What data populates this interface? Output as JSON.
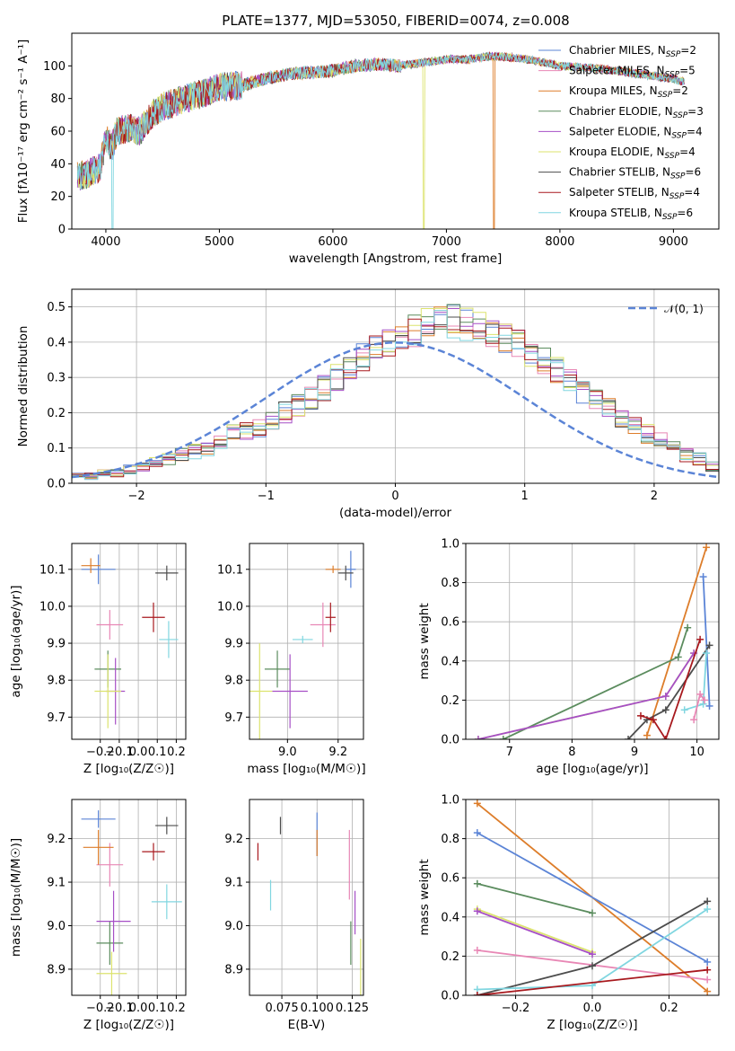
{
  "title": "PLATE=1377, MJD=53050, FIBERID=0074, z=0.008",
  "models": [
    {
      "name": "Chabrier MILES",
      "nssp": "2",
      "color": "#5b84d6"
    },
    {
      "name": "Salpeter MILES",
      "nssp": "5",
      "color": "#e887b5"
    },
    {
      "name": "Kroupa MILES",
      "nssp": "2",
      "color": "#dd7d2a"
    },
    {
      "name": "Chabrier ELODIE",
      "nssp": "3",
      "color": "#5b8c5e"
    },
    {
      "name": "Salpeter ELODIE",
      "nssp": "4",
      "color": "#a64fc6"
    },
    {
      "name": "Kroupa ELODIE",
      "nssp": "4",
      "color": "#dce36e"
    },
    {
      "name": "Chabrier STELIB",
      "nssp": "6",
      "color": "#4d4d4d"
    },
    {
      "name": "Salpeter STELIB",
      "nssp": "4",
      "color": "#a8191e"
    },
    {
      "name": "Kroupa STELIB",
      "nssp": "6",
      "color": "#80d6e0"
    }
  ],
  "chart_data": [
    {
      "id": "spectrum",
      "type": "line",
      "xlabel": "wavelength [Angstrom, rest frame]",
      "ylabel": "Flux [fλ10⁻¹⁷ erg cm⁻² s⁻¹ A⁻¹]",
      "xlim": [
        3700,
        9400
      ],
      "ylim": [
        0,
        120
      ],
      "xticks": [
        4000,
        5000,
        6000,
        7000,
        8000,
        9000
      ],
      "yticks": [
        0,
        20,
        40,
        60,
        80,
        100
      ],
      "x_range": [
        3750,
        9100
      ],
      "continuum": [
        [
          3750,
          32
        ],
        [
          3850,
          34
        ],
        [
          3950,
          38
        ],
        [
          4000,
          56
        ],
        [
          4050,
          50
        ],
        [
          4100,
          60
        ],
        [
          4200,
          62
        ],
        [
          4300,
          60
        ],
        [
          4400,
          70
        ],
        [
          4500,
          75
        ],
        [
          4700,
          80
        ],
        [
          4900,
          84
        ],
        [
          5000,
          87
        ],
        [
          5200,
          88
        ],
        [
          5400,
          92
        ],
        [
          5600,
          95
        ],
        [
          5800,
          96
        ],
        [
          6000,
          97
        ],
        [
          6200,
          100
        ],
        [
          6400,
          101
        ],
        [
          6600,
          100
        ],
        [
          6800,
          102
        ],
        [
          7000,
          104
        ],
        [
          7200,
          104
        ],
        [
          7400,
          106
        ],
        [
          7600,
          105
        ],
        [
          7800,
          103
        ],
        [
          8000,
          100
        ],
        [
          8200,
          99
        ],
        [
          8400,
          98
        ],
        [
          8600,
          96
        ],
        [
          8800,
          94
        ],
        [
          9000,
          92
        ],
        [
          9100,
          90
        ]
      ],
      "drops": [
        {
          "model": "Kroupa STELIB",
          "x": 4060
        },
        {
          "model": "Kroupa ELODIE",
          "x": 6800
        },
        {
          "model": "Kroupa MILES",
          "x": 7420
        }
      ]
    },
    {
      "id": "residuals",
      "type": "area",
      "xlabel": "(data-model)/error",
      "ylabel": "Normed distribution",
      "xlim": [
        -2.5,
        2.5
      ],
      "ylim": [
        0,
        0.55
      ],
      "xticks": [
        -2,
        -1,
        0,
        1,
        2
      ],
      "yticks": [
        0.0,
        0.1,
        0.2,
        0.3,
        0.4,
        0.5
      ],
      "reference_label": "𝒩(0, 1)",
      "bin_width": 0.1,
      "envelope": [
        0.02,
        0.02,
        0.03,
        0.03,
        0.04,
        0.05,
        0.06,
        0.07,
        0.08,
        0.09,
        0.1,
        0.12,
        0.14,
        0.15,
        0.16,
        0.18,
        0.2,
        0.22,
        0.24,
        0.27,
        0.3,
        0.33,
        0.36,
        0.38,
        0.4,
        0.41,
        0.43,
        0.45,
        0.46,
        0.46,
        0.45,
        0.44,
        0.43,
        0.41,
        0.39,
        0.37,
        0.35,
        0.32,
        0.29,
        0.26,
        0.23,
        0.21,
        0.18,
        0.16,
        0.14,
        0.12,
        0.1,
        0.08,
        0.07,
        0.05
      ],
      "bin_start": -2.5
    },
    {
      "id": "age-vs-Z",
      "type": "scatter",
      "xlabel": "Z [log₁₀(Z/Z☉)]",
      "ylabel": "age  [log₁₀(age/yr)]",
      "xlim": [
        -0.35,
        0.25
      ],
      "ylim": [
        9.64,
        10.17
      ],
      "xticks": [
        -0.2,
        -0.1,
        0.0,
        0.1,
        0.2
      ],
      "yticks": [
        9.7,
        9.8,
        9.9,
        10.0,
        10.1
      ],
      "points": [
        {
          "model": "Chabrier MILES",
          "x": -0.21,
          "y": 10.1,
          "xerr": 0.09,
          "yerr": 0.04
        },
        {
          "model": "Salpeter MILES",
          "x": -0.15,
          "y": 9.95,
          "xerr": 0.07,
          "yerr": 0.04
        },
        {
          "model": "Kroupa MILES",
          "x": -0.25,
          "y": 10.11,
          "xerr": 0.05,
          "yerr": 0.02
        },
        {
          "model": "Chabrier ELODIE",
          "x": -0.16,
          "y": 9.83,
          "xerr": 0.07,
          "yerr": 0.05
        },
        {
          "model": "Salpeter ELODIE",
          "x": -0.12,
          "y": 9.77,
          "xerr": 0.05,
          "yerr": 0.09
        },
        {
          "model": "Kroupa ELODIE",
          "x": -0.16,
          "y": 9.77,
          "xerr": 0.07,
          "yerr": 0.1
        },
        {
          "model": "Chabrier STELIB",
          "x": 0.15,
          "y": 10.09,
          "xerr": 0.06,
          "yerr": 0.02
        },
        {
          "model": "Salpeter STELIB",
          "x": 0.08,
          "y": 9.97,
          "xerr": 0.06,
          "yerr": 0.04
        },
        {
          "model": "Kroupa STELIB",
          "x": 0.16,
          "y": 9.91,
          "xerr": 0.05,
          "yerr": 0.05
        }
      ]
    },
    {
      "id": "age-vs-mass",
      "type": "scatter",
      "xlabel": "mass [log₁₀(M/M☉)]",
      "ylabel": "",
      "xlim": [
        8.85,
        9.3
      ],
      "ylim": [
        9.64,
        10.17
      ],
      "xticks": [
        9.0,
        9.2
      ],
      "yticks": [
        9.7,
        9.8,
        9.9,
        10.0,
        10.1
      ],
      "points": [
        {
          "model": "Chabrier MILES",
          "x": 9.25,
          "y": 10.1,
          "xerr": 0.02,
          "yerr": 0.05
        },
        {
          "model": "Salpeter MILES",
          "x": 9.14,
          "y": 9.95,
          "xerr": 0.05,
          "yerr": 0.06
        },
        {
          "model": "Kroupa MILES",
          "x": 9.18,
          "y": 10.1,
          "xerr": 0.03,
          "yerr": 0.01
        },
        {
          "model": "Chabrier ELODIE",
          "x": 8.96,
          "y": 9.83,
          "xerr": 0.05,
          "yerr": 0.05
        },
        {
          "model": "Salpeter ELODIE",
          "x": 9.01,
          "y": 9.77,
          "xerr": 0.07,
          "yerr": 0.1
        },
        {
          "model": "Kroupa ELODIE",
          "x": 8.89,
          "y": 9.77,
          "xerr": 0.05,
          "yerr": 0.13
        },
        {
          "model": "Chabrier STELIB",
          "x": 9.23,
          "y": 10.09,
          "xerr": 0.03,
          "yerr": 0.02
        },
        {
          "model": "Salpeter STELIB",
          "x": 9.17,
          "y": 9.97,
          "xerr": 0.02,
          "yerr": 0.04
        },
        {
          "model": "Kroupa STELIB",
          "x": 9.06,
          "y": 9.91,
          "xerr": 0.04,
          "yerr": 0.01
        }
      ]
    },
    {
      "id": "weight-vs-age",
      "type": "line",
      "xlabel": "age  [log₁₀(age/yr)]",
      "ylabel": "mass weight",
      "xlim": [
        6.3,
        10.35
      ],
      "ylim": [
        0,
        1.0
      ],
      "xticks": [
        7,
        8,
        9,
        10
      ],
      "yticks": [
        0.0,
        0.2,
        0.4,
        0.6,
        0.8,
        1.0
      ],
      "series": [
        {
          "model": "Kroupa MILES",
          "x": [
            9.2,
            10.15
          ],
          "y": [
            0.02,
            0.98
          ]
        },
        {
          "model": "Chabrier MILES",
          "x": [
            10.1,
            10.2
          ],
          "y": [
            0.83,
            0.17
          ]
        },
        {
          "model": "Chabrier ELODIE",
          "x": [
            6.9,
            9.7,
            9.85
          ],
          "y": [
            0.0,
            0.42,
            0.57
          ]
        },
        {
          "model": "Kroupa ELODIE",
          "x": [
            6.5,
            9.5,
            9.95
          ],
          "y": [
            0.0,
            0.22,
            0.44
          ]
        },
        {
          "model": "Salpeter ELODIE",
          "x": [
            6.5,
            9.5,
            9.95
          ],
          "y": [
            0.0,
            0.22,
            0.44
          ]
        },
        {
          "model": "Chabrier STELIB",
          "x": [
            8.9,
            9.2,
            9.5,
            10.2
          ],
          "y": [
            0.0,
            0.1,
            0.15,
            0.48
          ]
        },
        {
          "model": "Salpeter STELIB",
          "x": [
            9.1,
            9.3,
            9.5,
            10.05
          ],
          "y": [
            0.12,
            0.1,
            0.0,
            0.51
          ]
        },
        {
          "model": "Kroupa STELIB",
          "x": [
            9.8,
            10.1,
            10.15
          ],
          "y": [
            0.15,
            0.18,
            0.44
          ]
        },
        {
          "model": "Salpeter MILES",
          "x": [
            9.95,
            10.05,
            10.12
          ],
          "y": [
            0.1,
            0.23,
            0.2
          ]
        }
      ]
    },
    {
      "id": "mass-vs-Z",
      "type": "scatter",
      "xlabel": "Z [log₁₀(Z/Z☉)]",
      "ylabel": "mass [log₁₀(M/M☉)]",
      "xlim": [
        -0.35,
        0.25
      ],
      "ylim": [
        8.84,
        9.29
      ],
      "xticks": [
        -0.2,
        -0.1,
        0.0,
        0.1,
        0.2
      ],
      "yticks": [
        8.9,
        9.0,
        9.1,
        9.2
      ],
      "points": [
        {
          "model": "Chabrier MILES",
          "x": -0.21,
          "y": 9.245,
          "xerr": 0.09,
          "yerr": 0.02
        },
        {
          "model": "Salpeter MILES",
          "x": -0.15,
          "y": 9.14,
          "xerr": 0.07,
          "yerr": 0.05
        },
        {
          "model": "Kroupa MILES",
          "x": -0.21,
          "y": 9.18,
          "xerr": 0.08,
          "yerr": 0.04
        },
        {
          "model": "Chabrier ELODIE",
          "x": -0.15,
          "y": 8.96,
          "xerr": 0.07,
          "yerr": 0.05
        },
        {
          "model": "Salpeter ELODIE",
          "x": -0.13,
          "y": 9.01,
          "xerr": 0.09,
          "yerr": 0.07
        },
        {
          "model": "Kroupa ELODIE",
          "x": -0.14,
          "y": 8.89,
          "xerr": 0.08,
          "yerr": 0.05
        },
        {
          "model": "Chabrier STELIB",
          "x": 0.15,
          "y": 9.23,
          "xerr": 0.06,
          "yerr": 0.02
        },
        {
          "model": "Salpeter STELIB",
          "x": 0.08,
          "y": 9.17,
          "xerr": 0.06,
          "yerr": 0.02
        },
        {
          "model": "Kroupa STELIB",
          "x": 0.15,
          "y": 9.055,
          "xerr": 0.08,
          "yerr": 0.04
        }
      ]
    },
    {
      "id": "mass-vs-ebv",
      "type": "scatter",
      "xlabel": "E(B-V)",
      "ylabel": "",
      "xlim": [
        0.052,
        0.133
      ],
      "ylim": [
        8.84,
        9.29
      ],
      "xticks": [
        0.075,
        0.1,
        0.125
      ],
      "xtick_labels": [
        "0.075",
        "0.100",
        "0.125"
      ],
      "yticks": [
        8.9,
        9.0,
        9.1,
        9.2
      ],
      "points": [
        {
          "model": "Chabrier MILES",
          "x": 0.1,
          "y": 9.21,
          "yerr": 0.05
        },
        {
          "model": "Salpeter MILES",
          "x": 0.123,
          "y": 9.14,
          "yerr": 0.08
        },
        {
          "model": "Kroupa MILES",
          "x": 0.1,
          "y": 9.19,
          "yerr": 0.03
        },
        {
          "model": "Chabrier ELODIE",
          "x": 0.124,
          "y": 8.96,
          "yerr": 0.05
        },
        {
          "model": "Salpeter ELODIE",
          "x": 0.127,
          "y": 9.03,
          "yerr": 0.05
        },
        {
          "model": "Kroupa ELODIE",
          "x": 0.131,
          "y": 8.9,
          "yerr": 0.07
        },
        {
          "model": "Chabrier STELIB",
          "x": 0.074,
          "y": 9.23,
          "yerr": 0.02
        },
        {
          "model": "Salpeter STELIB",
          "x": 0.058,
          "y": 9.17,
          "yerr": 0.02
        },
        {
          "model": "Kroupa STELIB",
          "x": 0.067,
          "y": 9.07,
          "yerr": 0.035
        }
      ]
    },
    {
      "id": "weight-vs-Z",
      "type": "line",
      "xlabel": "Z [log₁₀(Z/Z☉)]",
      "ylabel": "mass weight",
      "xlim": [
        -0.33,
        0.33
      ],
      "ylim": [
        0,
        1.0
      ],
      "xticks": [
        -0.2,
        0.0,
        0.2
      ],
      "yticks": [
        0.0,
        0.2,
        0.4,
        0.6,
        0.8,
        1.0
      ],
      "series": [
        {
          "model": "Kroupa MILES",
          "x": [
            -0.3,
            0.3
          ],
          "y": [
            0.98,
            0.02
          ]
        },
        {
          "model": "Chabrier MILES",
          "x": [
            -0.3,
            0.3
          ],
          "y": [
            0.83,
            0.17
          ]
        },
        {
          "model": "Chabrier ELODIE",
          "x": [
            -0.3,
            0.0
          ],
          "y": [
            0.57,
            0.42
          ]
        },
        {
          "model": "Kroupa ELODIE",
          "x": [
            -0.3,
            0.0
          ],
          "y": [
            0.44,
            0.22
          ]
        },
        {
          "model": "Salpeter ELODIE",
          "x": [
            -0.3,
            0.0
          ],
          "y": [
            0.43,
            0.21
          ]
        },
        {
          "model": "Salpeter MILES",
          "x": [
            -0.3,
            0.3
          ],
          "y": [
            0.23,
            0.08
          ]
        },
        {
          "model": "Chabrier STELIB",
          "x": [
            -0.3,
            0.0,
            0.3
          ],
          "y": [
            0.0,
            0.15,
            0.48
          ]
        },
        {
          "model": "Kroupa STELIB",
          "x": [
            -0.3,
            0.0,
            0.3
          ],
          "y": [
            0.03,
            0.05,
            0.44
          ]
        },
        {
          "model": "Salpeter STELIB",
          "x": [
            -0.3,
            0.3
          ],
          "y": [
            0.0,
            0.13
          ]
        }
      ]
    }
  ]
}
